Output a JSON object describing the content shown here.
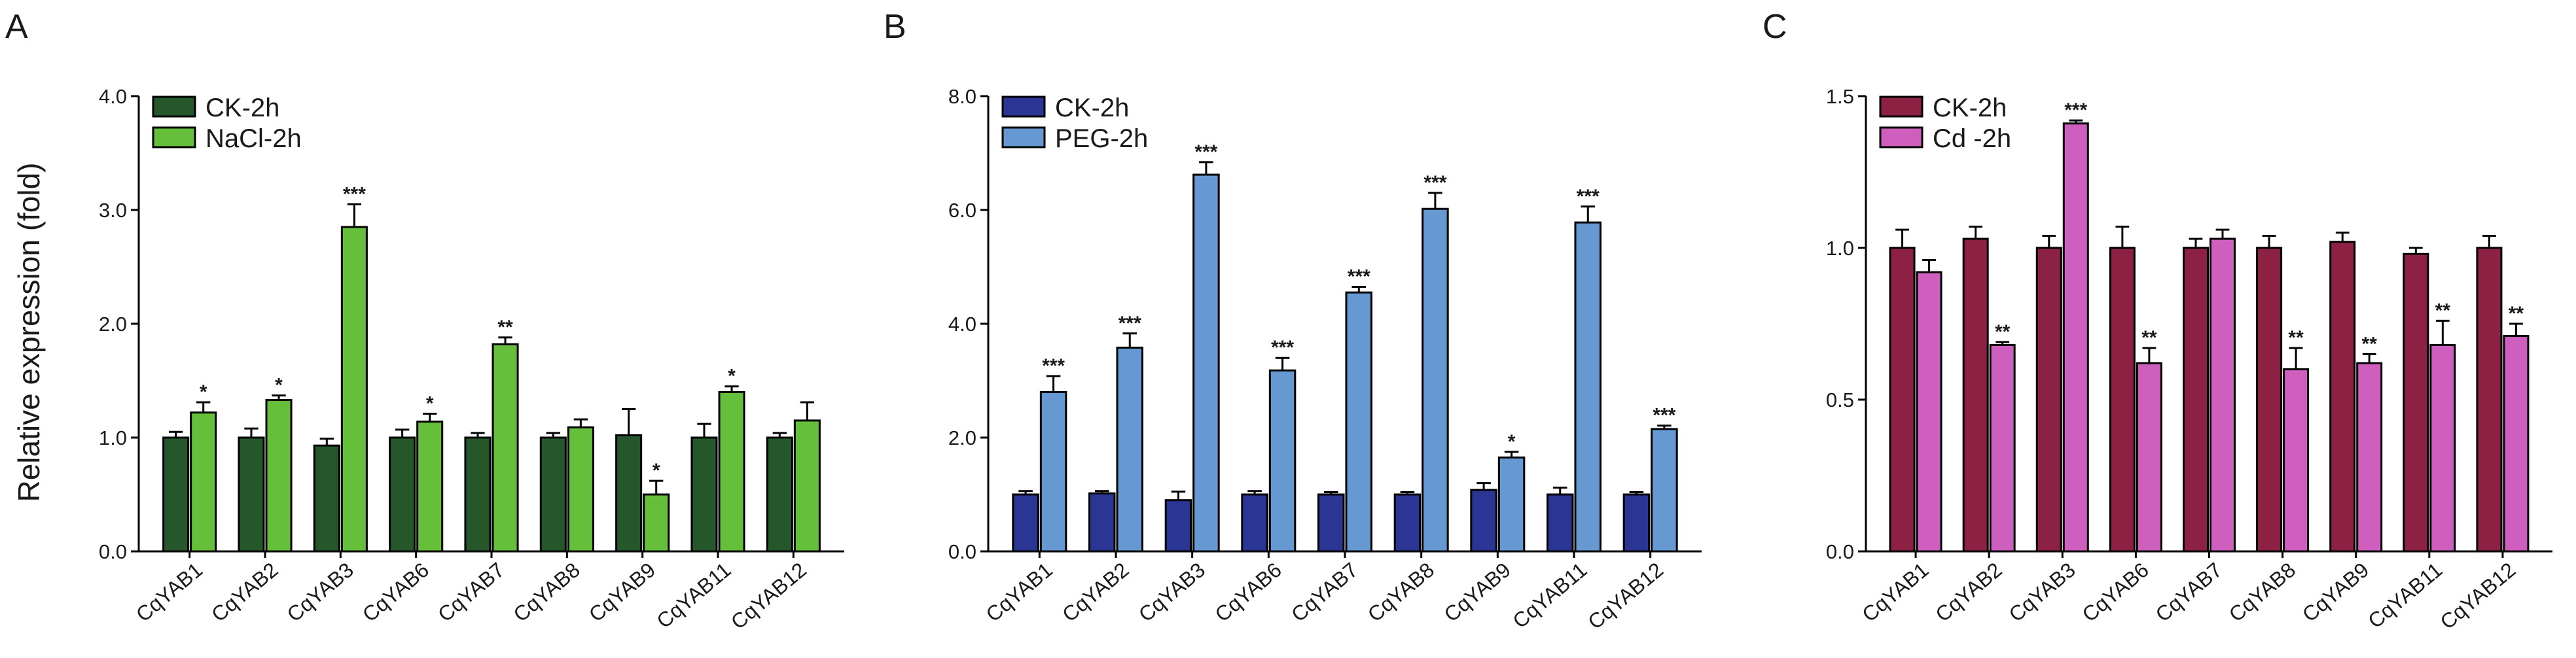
{
  "figure": {
    "y_axis_label": "Relative expression (fold)"
  },
  "chart_data": [
    {
      "type": "bar",
      "panel_label": "A",
      "categories": [
        "CqYAB1",
        "CqYAB2",
        "CqYAB3",
        "CqYAB6",
        "CqYAB7",
        "CqYAB8",
        "CqYAB9",
        "CqYAB11",
        "CqYAB12"
      ],
      "series": [
        {
          "name": "CK-2h",
          "color": "#26572b",
          "values": [
            1.0,
            1.0,
            0.93,
            1.0,
            1.0,
            1.0,
            1.02,
            1.0,
            1.0
          ],
          "errors": [
            0.05,
            0.08,
            0.06,
            0.07,
            0.04,
            0.04,
            0.23,
            0.12,
            0.04
          ],
          "significance": [
            "",
            "",
            "",
            "",
            "",
            "",
            "",
            "",
            ""
          ]
        },
        {
          "name": "NaCl-2h",
          "color": "#66bf3a",
          "values": [
            1.22,
            1.33,
            2.85,
            1.14,
            1.82,
            1.09,
            0.5,
            1.4,
            1.15
          ],
          "errors": [
            0.09,
            0.04,
            0.2,
            0.07,
            0.06,
            0.07,
            0.12,
            0.05,
            0.16
          ],
          "significance": [
            "*",
            "*",
            "***",
            "*",
            "**",
            "",
            "*",
            "*",
            ""
          ]
        }
      ],
      "ylim": [
        0,
        4
      ],
      "yticks": [
        0,
        1,
        2,
        3,
        4
      ],
      "ytick_labels": [
        "0.0",
        "1.0",
        "2.0",
        "3.0",
        "4.0"
      ],
      "ylabel": "Relative expression (fold)",
      "xlabel": "",
      "legend_position": "top-left"
    },
    {
      "type": "bar",
      "panel_label": "B",
      "categories": [
        "CqYAB1",
        "CqYAB2",
        "CqYAB3",
        "CqYAB6",
        "CqYAB7",
        "CqYAB8",
        "CqYAB9",
        "CqYAB11",
        "CqYAB12"
      ],
      "series": [
        {
          "name": "CK-2h",
          "color": "#2b3593",
          "values": [
            1.0,
            1.02,
            0.9,
            1.0,
            1.0,
            1.0,
            1.08,
            1.0,
            1.0
          ],
          "errors": [
            0.06,
            0.04,
            0.15,
            0.06,
            0.04,
            0.04,
            0.12,
            0.12,
            0.04
          ],
          "significance": [
            "",
            "",
            "",
            "",
            "",
            "",
            "",
            "",
            ""
          ]
        },
        {
          "name": "PEG-2h",
          "color": "#6699d1",
          "values": [
            2.8,
            3.58,
            6.62,
            3.18,
            4.55,
            6.02,
            1.65,
            5.78,
            2.15
          ],
          "errors": [
            0.28,
            0.25,
            0.22,
            0.22,
            0.1,
            0.28,
            0.1,
            0.28,
            0.06
          ],
          "significance": [
            "***",
            "***",
            "***",
            "***",
            "***",
            "***",
            "*",
            "***",
            "***"
          ]
        }
      ],
      "ylim": [
        0,
        8
      ],
      "yticks": [
        0,
        2,
        4,
        6,
        8
      ],
      "ytick_labels": [
        "0.0",
        "2.0",
        "4.0",
        "6.0",
        "8.0"
      ],
      "ylabel": "",
      "xlabel": "",
      "legend_position": "top-left"
    },
    {
      "type": "bar",
      "panel_label": "C",
      "categories": [
        "CqYAB1",
        "CqYAB2",
        "CqYAB3",
        "CqYAB6",
        "CqYAB7",
        "CqYAB8",
        "CqYAB9",
        "CqYAB11",
        "CqYAB12"
      ],
      "series": [
        {
          "name": "CK-2h",
          "color": "#8c2144",
          "values": [
            1.0,
            1.03,
            1.0,
            1.0,
            1.0,
            1.0,
            1.02,
            0.98,
            1.0
          ],
          "errors": [
            0.06,
            0.04,
            0.04,
            0.07,
            0.03,
            0.04,
            0.03,
            0.02,
            0.04
          ],
          "significance": [
            "",
            "",
            "",
            "",
            "",
            "",
            "",
            "",
            ""
          ]
        },
        {
          "name": "Cd -2h",
          "color": "#cf5fbe",
          "values": [
            0.92,
            0.68,
            1.41,
            0.62,
            1.03,
            0.6,
            0.62,
            0.68,
            0.71
          ],
          "errors": [
            0.04,
            0.01,
            0.01,
            0.05,
            0.03,
            0.07,
            0.03,
            0.08,
            0.04
          ],
          "significance": [
            "",
            "**",
            "***",
            "**",
            "",
            "**",
            "**",
            "**",
            "**"
          ]
        }
      ],
      "ylim": [
        0,
        1.5
      ],
      "yticks": [
        0,
        0.5,
        1.0,
        1.5
      ],
      "ytick_labels": [
        "0.0",
        "0.5",
        "1.0",
        "1.5"
      ],
      "ylabel": "",
      "xlabel": "",
      "legend_position": "top-left"
    }
  ]
}
